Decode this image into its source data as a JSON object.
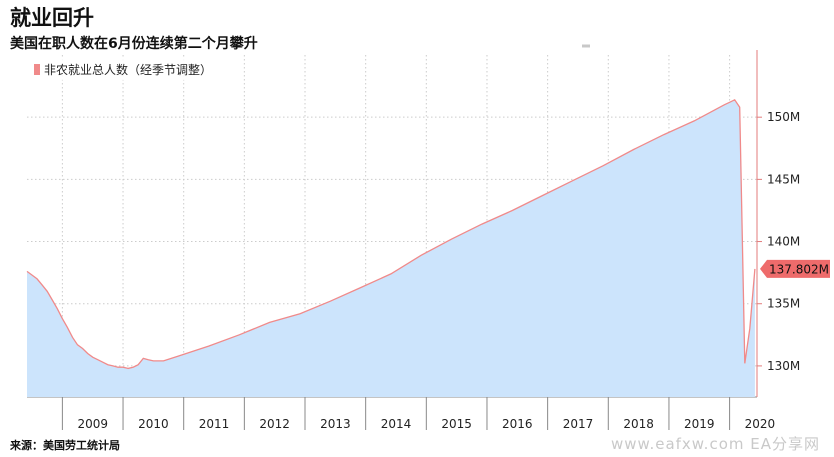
{
  "header": {
    "title": "就业回升",
    "subtitle": "美国在职人数在6月份连续第二个月攀升"
  },
  "footer": {
    "source": "来源：美国劳工统计局",
    "watermark": "www.eafxw.com  EA分享网"
  },
  "colors": {
    "fill": "#cce4fc",
    "line": "#f08a8a",
    "last_value_badge": "#ee6b6b",
    "axis": "#e37b7b",
    "grid": "#cccccc"
  },
  "chart_data": {
    "type": "area",
    "legend": "非农就业总人数（经季节调整）",
    "legend_placement": "top-left",
    "y_axis_position": "right",
    "ylim": [
      127.5,
      155.0
    ],
    "y_ticks": [
      130,
      135,
      140,
      145,
      150
    ],
    "y_tick_labels": [
      "130M",
      "135M",
      "140M",
      "145M",
      "150M"
    ],
    "x_tick_labels": [
      "2009",
      "2010",
      "2011",
      "2012",
      "2013",
      "2014",
      "2015",
      "2016",
      "2017",
      "2018",
      "2019",
      "2020"
    ],
    "grid": true,
    "last_value_label": "137.802M",
    "series": [
      {
        "name": "非农就业总人数（经季节调整）",
        "x": [
          "2008-06",
          "2008-07",
          "2008-08",
          "2008-09",
          "2008-10",
          "2008-11",
          "2008-12",
          "2009-01",
          "2009-02",
          "2009-03",
          "2009-04",
          "2009-05",
          "2009-06",
          "2009-07",
          "2009-08",
          "2009-09",
          "2009-10",
          "2009-11",
          "2009-12",
          "2010-01",
          "2010-02",
          "2010-03",
          "2010-04",
          "2010-05",
          "2010-06",
          "2010-07",
          "2010-09",
          "2010-12",
          "2011-06",
          "2011-12",
          "2012-06",
          "2012-12",
          "2013-06",
          "2013-12",
          "2014-06",
          "2014-12",
          "2015-06",
          "2015-12",
          "2016-06",
          "2016-12",
          "2017-06",
          "2017-12",
          "2018-06",
          "2018-12",
          "2019-06",
          "2019-12",
          "2020-01",
          "2020-02",
          "2020-03",
          "2020-04",
          "2020-05",
          "2020-06"
        ],
        "values": [
          137.6,
          137.3,
          137.0,
          136.5,
          136.0,
          135.3,
          134.6,
          133.8,
          133.1,
          132.3,
          131.7,
          131.4,
          131.0,
          130.7,
          130.5,
          130.3,
          130.1,
          130.0,
          129.9,
          129.9,
          129.8,
          129.9,
          130.1,
          130.6,
          130.5,
          130.4,
          130.4,
          130.8,
          131.6,
          132.5,
          133.5,
          134.2,
          135.2,
          136.3,
          137.4,
          138.9,
          140.2,
          141.4,
          142.5,
          143.7,
          144.9,
          146.1,
          147.4,
          148.6,
          149.7,
          151.0,
          151.2,
          151.4,
          150.8,
          130.2,
          133.0,
          137.8
        ]
      }
    ]
  }
}
